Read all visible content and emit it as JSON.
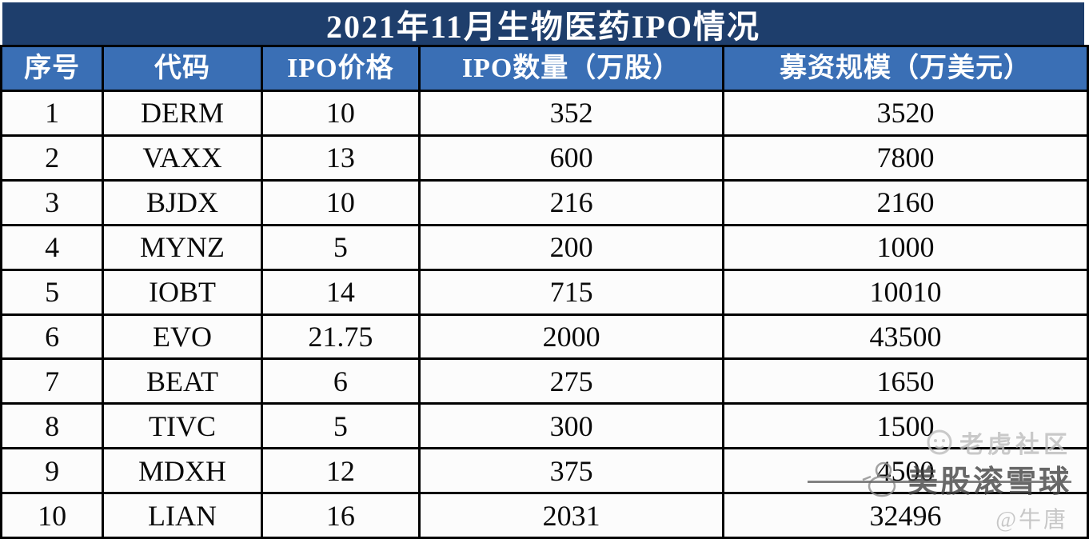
{
  "title": "2021年11月生物医药IPO情况",
  "chart_data": {
    "type": "table",
    "title": "2021年11月生物医药IPO情况",
    "columns": [
      "序号",
      "代码",
      "IPO价格",
      "IPO数量（万股）",
      "募资规模（万美元）"
    ],
    "rows": [
      [
        "1",
        "DERM",
        "10",
        "352",
        "3520"
      ],
      [
        "2",
        "VAXX",
        "13",
        "600",
        "7800"
      ],
      [
        "3",
        "BJDX",
        "10",
        "216",
        "2160"
      ],
      [
        "4",
        "MYNZ",
        "5",
        "200",
        "1000"
      ],
      [
        "5",
        "IOBT",
        "14",
        "715",
        "10010"
      ],
      [
        "6",
        "EVO",
        "21.75",
        "2000",
        "43500"
      ],
      [
        "7",
        "BEAT",
        "6",
        "275",
        "1650"
      ],
      [
        "8",
        "TIVC",
        "5",
        "300",
        "1500"
      ],
      [
        "9",
        "MDXH",
        "12",
        "375",
        "4500"
      ],
      [
        "10",
        "LIAN",
        "16",
        "2031",
        "32496"
      ]
    ]
  },
  "watermark": {
    "community": "老虎社区",
    "brand": "美股滚雪球",
    "handle": "@牛唐"
  },
  "colors": {
    "title_bg": "#1e3e6c",
    "header_bg": "#3a6fb5",
    "header_text": "#ffffff",
    "border": "#000000",
    "row_bg": "#fcfcfc",
    "cell_text": "#0a0a0a"
  }
}
